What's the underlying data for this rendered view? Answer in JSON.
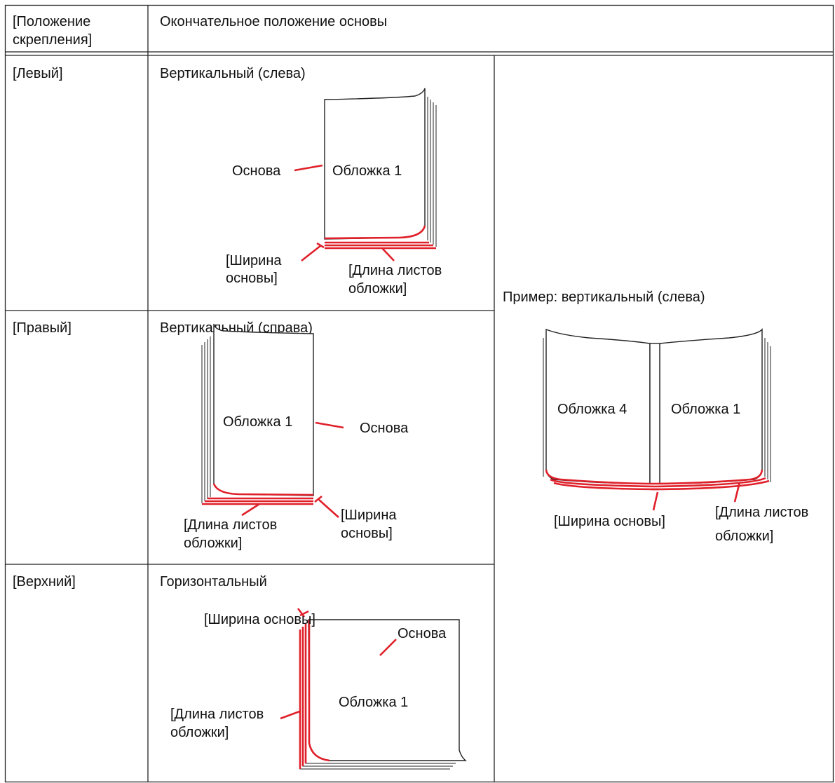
{
  "header": {
    "position": [
      "[Положение",
      "скрепления]"
    ],
    "final": "Окончательное положение основы"
  },
  "rows": [
    {
      "position": "[Левый]",
      "orientation": "Вертикальный (слева)",
      "diagram": {
        "cover": "Обложка 1",
        "spine": "Основа",
        "spine_width": [
          "[Ширина",
          "основы]"
        ],
        "cover_length": [
          "[Длина листов",
          "обложки]"
        ]
      }
    },
    {
      "position": "[Правый]",
      "orientation": "Вертикальный (справа)",
      "diagram": {
        "cover": "Обложка 1",
        "spine": "Основа",
        "spine_width": [
          "[Ширина",
          "основы]"
        ],
        "cover_length": [
          "[Длина листов",
          "обложки]"
        ]
      }
    },
    {
      "position": "[Верхний]",
      "orientation": "Горизонтальный",
      "diagram": {
        "cover": "Обложка 1",
        "spine": "Основа",
        "spine_width": [
          "[Ширина основы]"
        ],
        "cover_length": [
          "[Длина листов",
          "обложки]"
        ]
      }
    }
  ],
  "example": {
    "title": "Пример: вертикальный (слева)",
    "cover_back": "Обложка 4",
    "cover_front": "Обложка 1",
    "spine_width": "[Ширина основы]",
    "cover_length": [
      "[Длина листов",
      "обложки]"
    ]
  }
}
